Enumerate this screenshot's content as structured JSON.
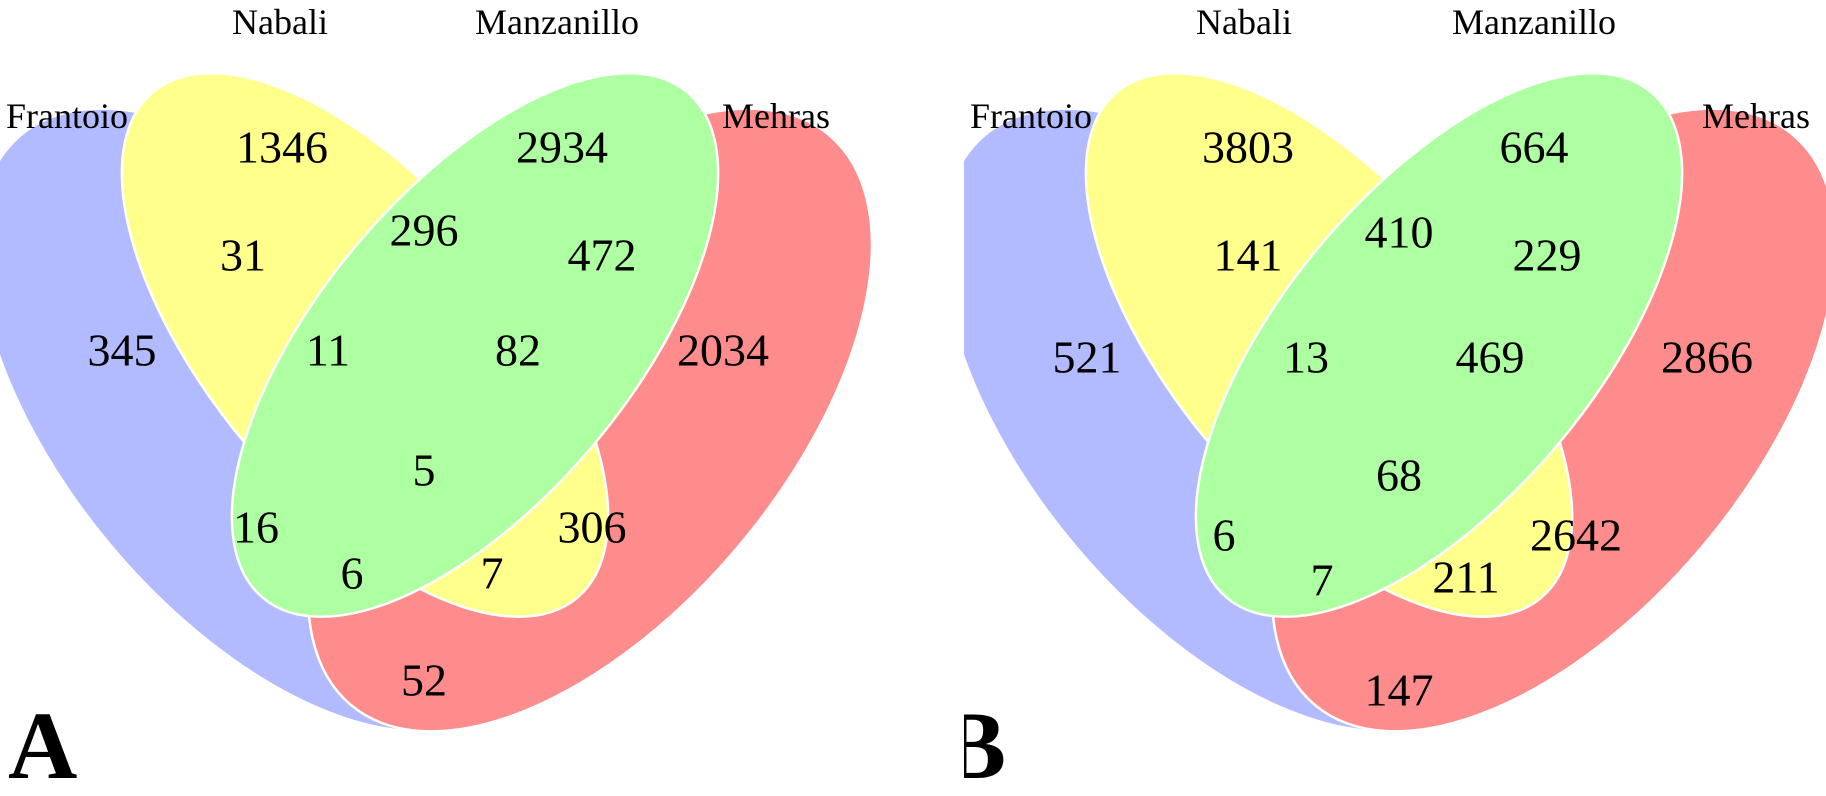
{
  "sets": {
    "frantoio": {
      "label": "Frantoio",
      "color": "#aab4ff"
    },
    "nabali": {
      "label": "Nabali",
      "color": "#ffff80"
    },
    "manzanillo": {
      "label": "Manzanillo",
      "color": "#a6ff99"
    },
    "mehras": {
      "label": "Mehras",
      "color": "#ff8080"
    }
  },
  "panels": [
    {
      "letter": "A",
      "regions": {
        "frantoio_only": "345",
        "nabali_only": "1346",
        "manzanillo_only": "2934",
        "mehras_only": "2034",
        "frantoio_nabali": "31",
        "nabali_manzanillo": "296",
        "manzanillo_mehras": "472",
        "frantoio_nabali_manzanillo": "11",
        "nabali_manzanillo_mehras": "82",
        "all_four": "5",
        "frantoio_manzanillo": "16",
        "nabali_mehras": "306",
        "frantoio_manzanillo_mehras": "6",
        "frantoio_nabali_mehras": "7",
        "frantoio_mehras": "52"
      }
    },
    {
      "letter": "B",
      "regions": {
        "frantoio_only": "521",
        "nabali_only": "3803",
        "manzanillo_only": "664",
        "mehras_only": "2866",
        "frantoio_nabali": "141",
        "nabali_manzanillo": "410",
        "manzanillo_mehras": "229",
        "frantoio_nabali_manzanillo": "13",
        "nabali_manzanillo_mehras": "469",
        "all_four": "68",
        "frantoio_manzanillo": "6",
        "nabali_mehras": "2642",
        "frantoio_manzanillo_mehras": "7",
        "frantoio_nabali_mehras": "211",
        "frantoio_mehras": "147"
      }
    }
  ]
}
